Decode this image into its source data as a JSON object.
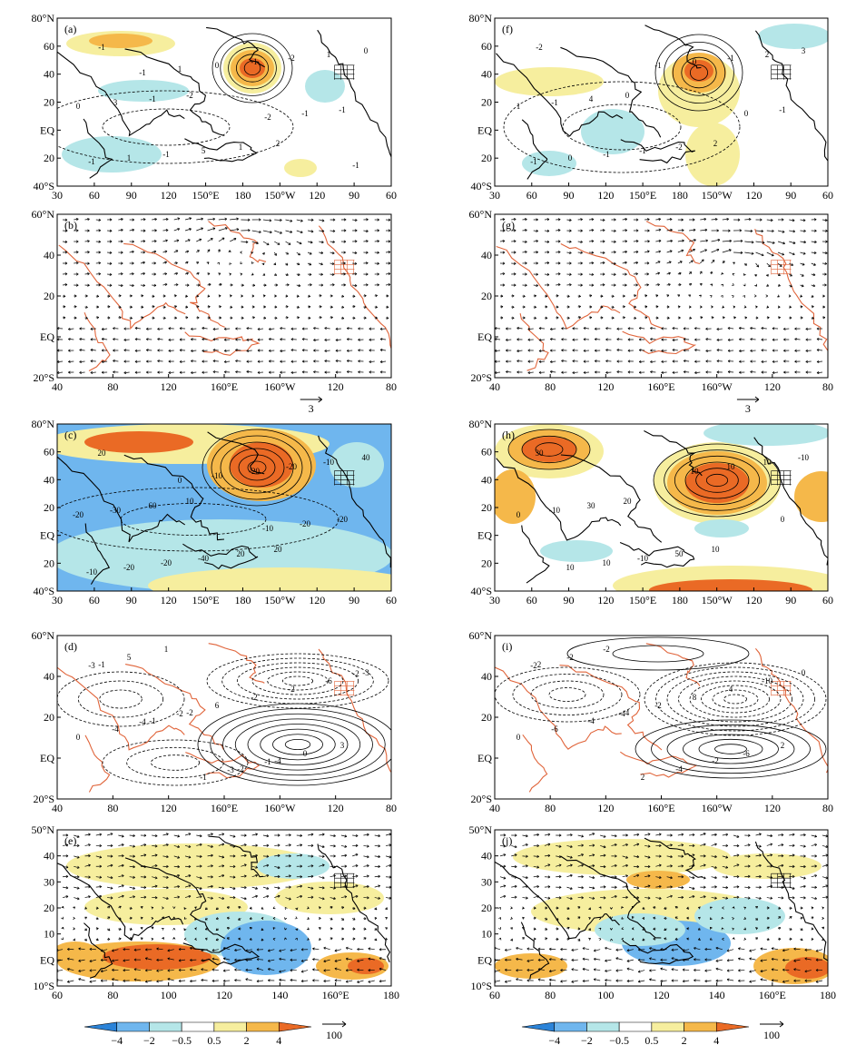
{
  "figure": {
    "panels": [
      {
        "id": "a",
        "label": "(a)",
        "kind": "shaded-contour",
        "lat_ticks": [
          "80°N",
          "60",
          "40",
          "20",
          "EQ",
          "20",
          "40°S"
        ],
        "lon_ticks": [
          "30",
          "60",
          "90",
          "120",
          "150°E",
          "180",
          "150°W",
          "120",
          "90",
          "60"
        ],
        "contour_labels": [
          "-1",
          "-2",
          "2",
          "0",
          "-1",
          "1",
          "1",
          "3",
          "5",
          "-2",
          "0",
          "-1",
          "-1",
          "-1",
          "1",
          "0",
          "-1",
          "-1",
          "1",
          "-2",
          "-1",
          "-1"
        ]
      },
      {
        "id": "f",
        "label": "(f)",
        "kind": "shaded-contour",
        "lat_ticks": [
          "80°N",
          "60",
          "40",
          "20",
          "EQ",
          "20",
          "40°S"
        ],
        "lon_ticks": [
          "30",
          "60",
          "90",
          "120",
          "150°E",
          "180",
          "150°W",
          "120",
          "90",
          "60"
        ],
        "contour_labels": [
          "-2",
          "0",
          "2",
          "3",
          "4",
          "-2",
          "2",
          "-1",
          "-1",
          "-1",
          "1",
          "-1",
          "0",
          "-1",
          "0",
          "-1",
          "0",
          "-1"
        ]
      },
      {
        "id": "b",
        "label": "(b)",
        "kind": "vector",
        "lat_ticks": [
          "60°N",
          "40",
          "20",
          "EQ",
          "20°S"
        ],
        "lon_ticks": [
          "40",
          "80",
          "120",
          "160°E",
          "160°W",
          "120",
          "80"
        ],
        "ref_vector": "3"
      },
      {
        "id": "g",
        "label": "(g)",
        "kind": "vector",
        "lat_ticks": [
          "60°N",
          "40",
          "20",
          "EQ",
          "20°S"
        ],
        "lon_ticks": [
          "40",
          "80",
          "120",
          "160°E",
          "160°W",
          "120",
          "80"
        ],
        "ref_vector": "3"
      },
      {
        "id": "c",
        "label": "(c)",
        "kind": "shaded-contour",
        "lat_ticks": [
          "80°N",
          "60",
          "40",
          "20",
          "EQ",
          "20",
          "40°S"
        ],
        "lon_ticks": [
          "30",
          "60",
          "90",
          "120",
          "150°E",
          "180",
          "150°W",
          "120",
          "90",
          "60"
        ],
        "contour_labels": [
          "20",
          "10",
          "20",
          "40",
          "60",
          "20",
          "-10",
          "-30",
          "-40",
          "-20",
          "-20",
          "-20",
          "-20",
          "-20",
          "-20",
          "-10",
          "-20",
          "-10",
          "0",
          "-10"
        ]
      },
      {
        "id": "h",
        "label": "(h)",
        "kind": "shaded-contour",
        "lat_ticks": [
          "80°N",
          "60",
          "40",
          "20",
          "EQ",
          "20",
          "40°S"
        ],
        "lon_ticks": [
          "30",
          "60",
          "90",
          "120",
          "150°E",
          "180",
          "150°W",
          "120",
          "90",
          "60"
        ],
        "contour_labels": [
          "30",
          "20",
          "10",
          "-10",
          "30",
          "50",
          "10",
          "-10",
          "-10",
          "10",
          "0",
          "10",
          "10",
          "0",
          "10"
        ]
      },
      {
        "id": "d",
        "label": "(d)",
        "kind": "contour",
        "lat_ticks": [
          "60°N",
          "40",
          "20",
          "EQ",
          "20°S"
        ],
        "lon_ticks": [
          "40",
          "80",
          "120",
          "160°E",
          "160°W",
          "120",
          "80"
        ],
        "contour_labels": [
          "-1",
          "-2",
          "-4",
          "-3",
          "-1",
          "-2",
          "-6",
          "-4",
          "-1",
          "-2",
          "0",
          "1",
          "-2",
          "3",
          "5",
          "6",
          "0",
          "-3",
          "-2",
          "-1",
          "-2",
          "-4",
          "-3"
        ]
      },
      {
        "id": "i",
        "label": "(i)",
        "kind": "contour",
        "lat_ticks": [
          "60°N",
          "40",
          "20",
          "EQ",
          "20°S"
        ],
        "lon_ticks": [
          "40",
          "80",
          "120",
          "160°E",
          "160°W",
          "120",
          "80"
        ],
        "contour_labels": [
          "2",
          "4",
          "-2",
          "0",
          "-4",
          "-4",
          "-10",
          "-6",
          "2",
          "4",
          "0",
          "-2",
          "8",
          "2",
          "-2",
          "-2",
          "-6",
          "-2",
          "-4"
        ]
      },
      {
        "id": "e",
        "label": "(e)",
        "kind": "shaded-vector",
        "lat_ticks": [
          "50°N",
          "40",
          "30",
          "20",
          "10",
          "EQ",
          "10°S"
        ],
        "lon_ticks": [
          "60",
          "80",
          "100",
          "120",
          "140",
          "160°E",
          "180"
        ],
        "colorbar": {
          "ticks": [
            "−4",
            "−2",
            "−0.5",
            "0.5",
            "2",
            "4"
          ],
          "ref_vector": "100"
        }
      },
      {
        "id": "j",
        "label": "(j)",
        "kind": "shaded-vector",
        "lat_ticks": [
          "50°N",
          "40",
          "30",
          "20",
          "10",
          "EQ",
          "10°S"
        ],
        "lon_ticks": [
          "60",
          "80",
          "100",
          "120",
          "140",
          "160°E",
          "180"
        ],
        "colorbar": {
          "ticks": [
            "−4",
            "−2",
            "−0.5",
            "0.5",
            "2",
            "4"
          ],
          "ref_vector": "100"
        }
      }
    ],
    "colors": {
      "neg_strong": "#2b83d8",
      "neg_mid": "#6fb6ee",
      "neg_weak": "#b5e6e8",
      "pos_weak": "#f6ee9e",
      "pos_mid": "#f5b84a",
      "pos_strong": "#ea6a25",
      "coast_red": "#e0643a",
      "coast_black": "#000000",
      "frame": "#000000"
    }
  }
}
